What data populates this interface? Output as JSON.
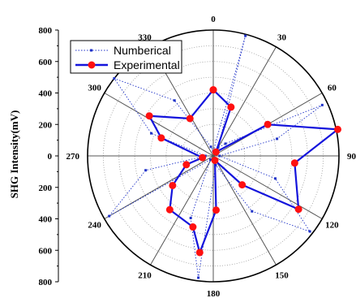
{
  "chart_data": {
    "type": "polar-line",
    "ylabel": "SHG Intensity(mV)",
    "radial_ticks": [
      "800",
      "600",
      "400",
      "200",
      "0",
      "200",
      "400",
      "600",
      "800"
    ],
    "radial_max": 800,
    "angle_ticks": [
      "0",
      "30",
      "60",
      "90",
      "120",
      "150",
      "180",
      "210",
      "240",
      "270",
      "300",
      "330"
    ],
    "angle_direction": "clockwise-from-top",
    "grid": true,
    "legend_position": "top-left",
    "series": [
      {
        "name": "Numberical",
        "style": "dotted-line-small-square-markers",
        "color": "#1f32c8",
        "points": [
          {
            "angle": 0,
            "r": 30
          },
          {
            "angle": 15,
            "r": 790
          },
          {
            "angle": 30,
            "r": 60
          },
          {
            "angle": 45,
            "r": 110
          },
          {
            "angle": 65,
            "r": 765
          },
          {
            "angle": 75,
            "r": 420
          },
          {
            "angle": 90,
            "r": 40
          },
          {
            "angle": 110,
            "r": 420
          },
          {
            "angle": 128,
            "r": 780
          },
          {
            "angle": 145,
            "r": 430
          },
          {
            "angle": 165,
            "r": 60
          },
          {
            "angle": 187,
            "r": 780
          },
          {
            "angle": 200,
            "r": 420
          },
          {
            "angle": 218,
            "r": 30
          },
          {
            "angle": 240,
            "r": 765
          },
          {
            "angle": 258,
            "r": 440
          },
          {
            "angle": 270,
            "r": 50
          },
          {
            "angle": 290,
            "r": 420
          },
          {
            "angle": 308,
            "r": 800
          },
          {
            "angle": 325,
            "r": 430
          },
          {
            "angle": 345,
            "r": 60
          }
        ]
      },
      {
        "name": "Experimental",
        "style": "solid-line-circle-markers",
        "color": "#1414dc",
        "marker_color": "#ff1010",
        "points": [
          {
            "angle": 0,
            "r": 420
          },
          {
            "angle": 20,
            "r": 330
          },
          {
            "angle": 35,
            "r": 30
          },
          {
            "angle": 60,
            "r": 400
          },
          {
            "angle": 78,
            "r": 810
          },
          {
            "angle": 95,
            "r": 520
          },
          {
            "angle": 122,
            "r": 640
          },
          {
            "angle": 135,
            "r": 260
          },
          {
            "angle": 160,
            "r": 30
          },
          {
            "angle": 177,
            "r": 345
          },
          {
            "angle": 188,
            "r": 620
          },
          {
            "angle": 196,
            "r": 470
          },
          {
            "angle": 219,
            "r": 440
          },
          {
            "angle": 234,
            "r": 320
          },
          {
            "angle": 252,
            "r": 180
          },
          {
            "angle": 261,
            "r": 70
          },
          {
            "angle": 289,
            "r": 350
          },
          {
            "angle": 302,
            "r": 480
          },
          {
            "angle": 328,
            "r": 280
          },
          {
            "angle": 360,
            "r": 420
          }
        ]
      }
    ]
  }
}
